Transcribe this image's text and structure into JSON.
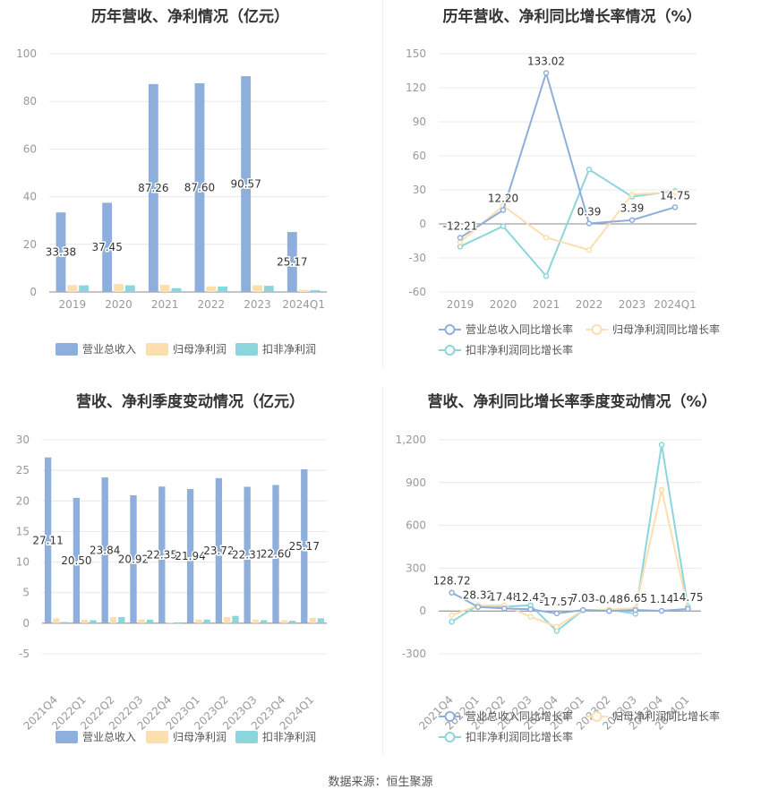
{
  "source_text": "数据来源：恒生聚源",
  "colors": {
    "revenue": "#8EAEDC",
    "parent_profit": "#FBDFAE",
    "deducted_profit": "#8BD6DC",
    "grid": "#E8E8E8",
    "axis_text": "#999999"
  },
  "chart_data": [
    {
      "id": "annual-values",
      "type": "bar",
      "title": "历年营收、净利情况（亿元）",
      "categories": [
        "2019",
        "2020",
        "2021",
        "2022",
        "2023",
        "2024Q1"
      ],
      "ylim": [
        0,
        100
      ],
      "yticks": [
        0,
        20,
        40,
        60,
        80,
        100
      ],
      "series": [
        {
          "name": "营业总收入",
          "values": [
            33.38,
            37.45,
            87.26,
            87.6,
            90.57,
            25.17
          ],
          "labels": [
            "33.38",
            "37.45",
            "87.26",
            "87.60",
            "90.57",
            "25.17"
          ]
        },
        {
          "name": "归母净利润",
          "values": [
            2.9,
            3.3,
            3.0,
            2.4,
            2.8,
            0.9
          ]
        },
        {
          "name": "扣非净利润",
          "values": [
            2.8,
            2.8,
            1.6,
            2.3,
            2.6,
            0.8
          ]
        }
      ],
      "legend": "bottom"
    },
    {
      "id": "annual-growth",
      "type": "line",
      "title": "历年营收、净利同比增长率情况（%）",
      "categories": [
        "2019",
        "2020",
        "2021",
        "2022",
        "2023",
        "2024Q1"
      ],
      "ylim": [
        -60,
        150
      ],
      "yticks": [
        -60,
        -30,
        0,
        30,
        60,
        90,
        120,
        150
      ],
      "series": [
        {
          "name": "营业总收入同比增长率",
          "values": [
            -12.21,
            12.2,
            133.02,
            0.39,
            3.39,
            14.75
          ],
          "labels": [
            "-12.21",
            "12.20",
            "133.02",
            "0.39",
            "3.39",
            "14.75"
          ]
        },
        {
          "name": "归母净利润同比增长率",
          "values": [
            -16,
            16,
            -12,
            -23,
            26,
            28
          ]
        },
        {
          "name": "扣非净利润同比增长率",
          "values": [
            -20,
            -2,
            -46,
            48,
            24,
            29
          ]
        }
      ],
      "legend": "bottom"
    },
    {
      "id": "quarterly-values",
      "type": "bar",
      "title": "营收、净利季度变动情况（亿元）",
      "categories": [
        "2021Q4",
        "2022Q1",
        "2022Q2",
        "2022Q3",
        "2022Q4",
        "2023Q1",
        "2023Q2",
        "2023Q3",
        "2023Q4",
        "2024Q1"
      ],
      "ylim": [
        -5,
        30
      ],
      "yticks": [
        -5,
        0,
        5,
        10,
        15,
        20,
        25,
        30
      ],
      "series": [
        {
          "name": "营业总收入",
          "values": [
            27.11,
            20.5,
            23.84,
            20.92,
            22.35,
            21.94,
            23.72,
            22.31,
            22.6,
            25.17
          ],
          "labels": [
            "27.11",
            "20.50",
            "23.84",
            "20.92",
            "22.35",
            "21.94",
            "23.72",
            "22.31",
            "22.60",
            "25.17"
          ]
        },
        {
          "name": "归母净利润",
          "values": [
            0.8,
            0.6,
            1.0,
            0.6,
            0.05,
            0.6,
            1.0,
            0.6,
            0.5,
            0.9
          ]
        },
        {
          "name": "扣非净利润",
          "values": [
            0.2,
            0.5,
            1.0,
            0.6,
            -0.1,
            0.6,
            1.2,
            0.5,
            0.4,
            0.8
          ]
        }
      ],
      "legend": "bottom"
    },
    {
      "id": "quarterly-growth",
      "type": "line",
      "title": "营收、净利同比增长率季度变动情况（%）",
      "categories": [
        "2021Q4",
        "2022Q1",
        "2022Q2",
        "2022Q3",
        "2022Q4",
        "2023Q1",
        "2023Q2",
        "2023Q3",
        "2023Q4",
        "2024Q1"
      ],
      "ylim": [
        -300,
        1200
      ],
      "yticks": [
        -300,
        0,
        300,
        600,
        900,
        1200
      ],
      "ytick_labels": [
        "-300",
        "0",
        "300",
        "600",
        "900",
        "1,200"
      ],
      "series": [
        {
          "name": "营业总收入同比增长率",
          "values": [
            128.72,
            28.32,
            17.48,
            12.43,
            -17.57,
            7.03,
            -0.48,
            6.65,
            1.14,
            14.75
          ],
          "labels": [
            "128.72",
            "28.32",
            "17.48",
            "12.43",
            "-17.57",
            "7.03",
            "-0.48",
            "6.65",
            "1.14",
            "14.75"
          ]
        },
        {
          "name": "归母净利润同比增长率",
          "values": [
            -30,
            40,
            40,
            -40,
            -110,
            5,
            10,
            20,
            850,
            15
          ]
        },
        {
          "name": "扣非净利润同比增长率",
          "values": [
            -75,
            40,
            30,
            40,
            -140,
            5,
            10,
            -20,
            1165,
            30
          ]
        }
      ],
      "legend": "bottom"
    }
  ]
}
